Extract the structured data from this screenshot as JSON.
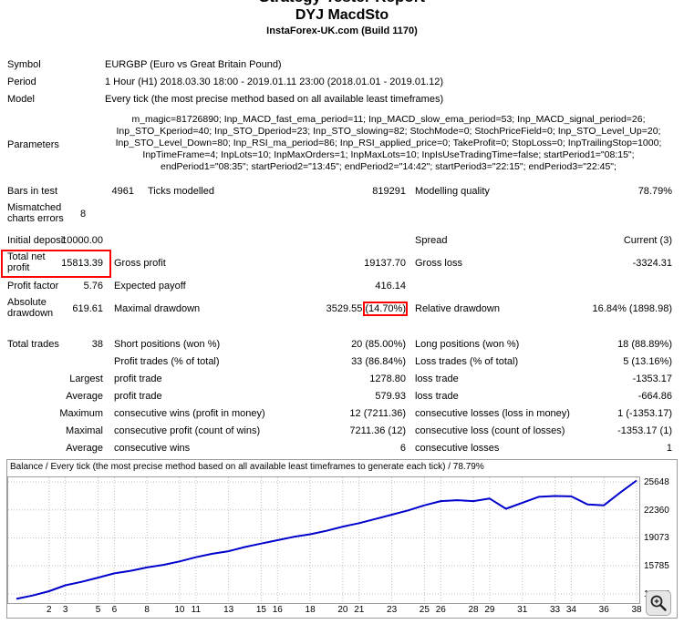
{
  "colors": {
    "highlight": "#ff0000",
    "balance_line": "#0000cd",
    "grid": "#c0c0c0"
  },
  "header": {
    "cropped_title": "Strategy Tester Report",
    "title": "DYJ MacdSto",
    "subtitle": "InstaForex-UK.com (Build 1170)"
  },
  "report": {
    "symbol_label": "Symbol",
    "symbol_value": "EURGBP (Euro vs Great Britain Pound)",
    "period_label": "Period",
    "period_value": "1 Hour (H1) 2018.03.30 18:00 - 2019.01.11 23:00 (2018.01.01 - 2019.01.12)",
    "model_label": "Model",
    "model_value": "Every tick (the most precise method based on all available least timeframes)",
    "parameters_label": "Parameters",
    "parameters_value": "m_magic=81726890; Inp_MACD_fast_ema_period=11; Inp_MACD_slow_ema_period=53; Inp_MACD_signal_period=26; Inp_STO_Kperiod=40; Inp_STO_Dperiod=23; Inp_STO_slowing=82; StochMode=0; StochPriceField=0; Inp_STO_Level_Up=20; Inp_STO_Level_Down=80; Inp_RSI_ma_period=86; Inp_RSI_applied_price=0; TakeProfit=0; StopLoss=0; InpTrailingStop=1000; InpTimeFrame=4; InpLots=10; InpMaxOrders=1; InpMaxLots=10; InpIsUseTradingTime=false; startPeriod1=\"08:15\"; endPeriod1=\"08:35\"; startPeriod2=\"13:45\"; endPeriod2=\"14:42\"; startPeriod3=\"22:15\"; endPeriod3=\"22:45\";",
    "bars_label": "Bars in test",
    "bars_value": "4961",
    "ticks_label": "Ticks modelled",
    "ticks_value": "819291",
    "quality_label": "Modelling quality",
    "quality_value": "78.79%",
    "mismatched_label": "Mismatched charts errors",
    "mismatched_value": "8",
    "initial_deposit_label": "Initial deposit",
    "initial_deposit_value": "10000.00",
    "spread_label": "Spread",
    "spread_value": "Current (3)",
    "net_profit_label": "Total net profit",
    "net_profit_value": "15813.39",
    "gross_profit_label": "Gross profit",
    "gross_profit_value": "19137.70",
    "gross_loss_label": "Gross loss",
    "gross_loss_value": "-3324.31",
    "profit_factor_label": "Profit factor",
    "profit_factor_value": "5.76",
    "expected_payoff_label": "Expected payoff",
    "expected_payoff_value": "416.14",
    "abs_dd_label": "Absolute drawdown",
    "abs_dd_value": "619.61",
    "max_dd_label": "Maximal drawdown",
    "max_dd_value": "3529.55",
    "max_dd_pct": "(14.70%)",
    "rel_dd_label": "Relative drawdown",
    "rel_dd_value": "16.84% (1898.98)",
    "total_trades_label": "Total trades",
    "total_trades_value": "38",
    "short_label": "Short positions (won %)",
    "short_value": "20 (85.00%)",
    "long_label": "Long positions (won %)",
    "long_value": "18 (88.89%)",
    "profit_trades_label": "Profit trades (% of total)",
    "profit_trades_value": "33 (86.84%)",
    "loss_trades_label": "Loss trades (% of total)",
    "loss_trades_value": "5 (13.16%)",
    "largest_label": "Largest",
    "largest_profit_label": "profit trade",
    "largest_profit_value": "1278.80",
    "largest_loss_label": "loss trade",
    "largest_loss_value": "-1353.17",
    "average_label": "Average",
    "avg_profit_label": "profit trade",
    "avg_profit_value": "579.93",
    "avg_loss_label": "loss trade",
    "avg_loss_value": "-664.86",
    "maximum_label": "Maximum",
    "max_wins_label": "consecutive wins (profit in money)",
    "max_wins_value": "12 (7211.36)",
    "max_losses_label": "consecutive losses (loss in money)",
    "max_losses_value": "1 (-1353.17)",
    "maximal_label": "Maximal",
    "maximal_profit_label": "consecutive profit (count of wins)",
    "maximal_profit_value": "7211.36 (12)",
    "maximal_loss_label": "consecutive loss (count of losses)",
    "maximal_loss_value": "-1353.17 (1)",
    "average2_label": "Average",
    "avg_cw_label": "consecutive wins",
    "avg_cw_value": "6",
    "avg_cl_label": "consecutive losses",
    "avg_cl_value": "1"
  },
  "chart_data": {
    "type": "line",
    "title": "Balance / Every tick (the most precise method based on all available least timeframes to generate each tick) / 78.79%",
    "xlabel": "",
    "ylabel": "",
    "grid": true,
    "legend_position": "none",
    "x_ticks": [
      2,
      3,
      5,
      6,
      8,
      10,
      11,
      13,
      15,
      16,
      18,
      20,
      21,
      23,
      25,
      26,
      28,
      29,
      31,
      33,
      34,
      36,
      38
    ],
    "y_ticks": [
      12497,
      15785,
      19073,
      22360,
      25648
    ],
    "x_range": [
      0,
      38
    ],
    "y_range": [
      11300,
      26300
    ],
    "series": [
      {
        "name": "Balance",
        "color": "#0000cd",
        "values": [
          11900,
          12300,
          12800,
          13500,
          13900,
          14400,
          14900,
          15200,
          15600,
          15900,
          16300,
          16800,
          17200,
          17500,
          18000,
          18400,
          18800,
          19200,
          19500,
          19900,
          20400,
          20800,
          21300,
          21800,
          22300,
          22900,
          23400,
          23500,
          23400,
          23700,
          22500,
          23200,
          23900,
          24000,
          23950,
          23000,
          22900,
          24400,
          25813.39
        ]
      }
    ]
  }
}
